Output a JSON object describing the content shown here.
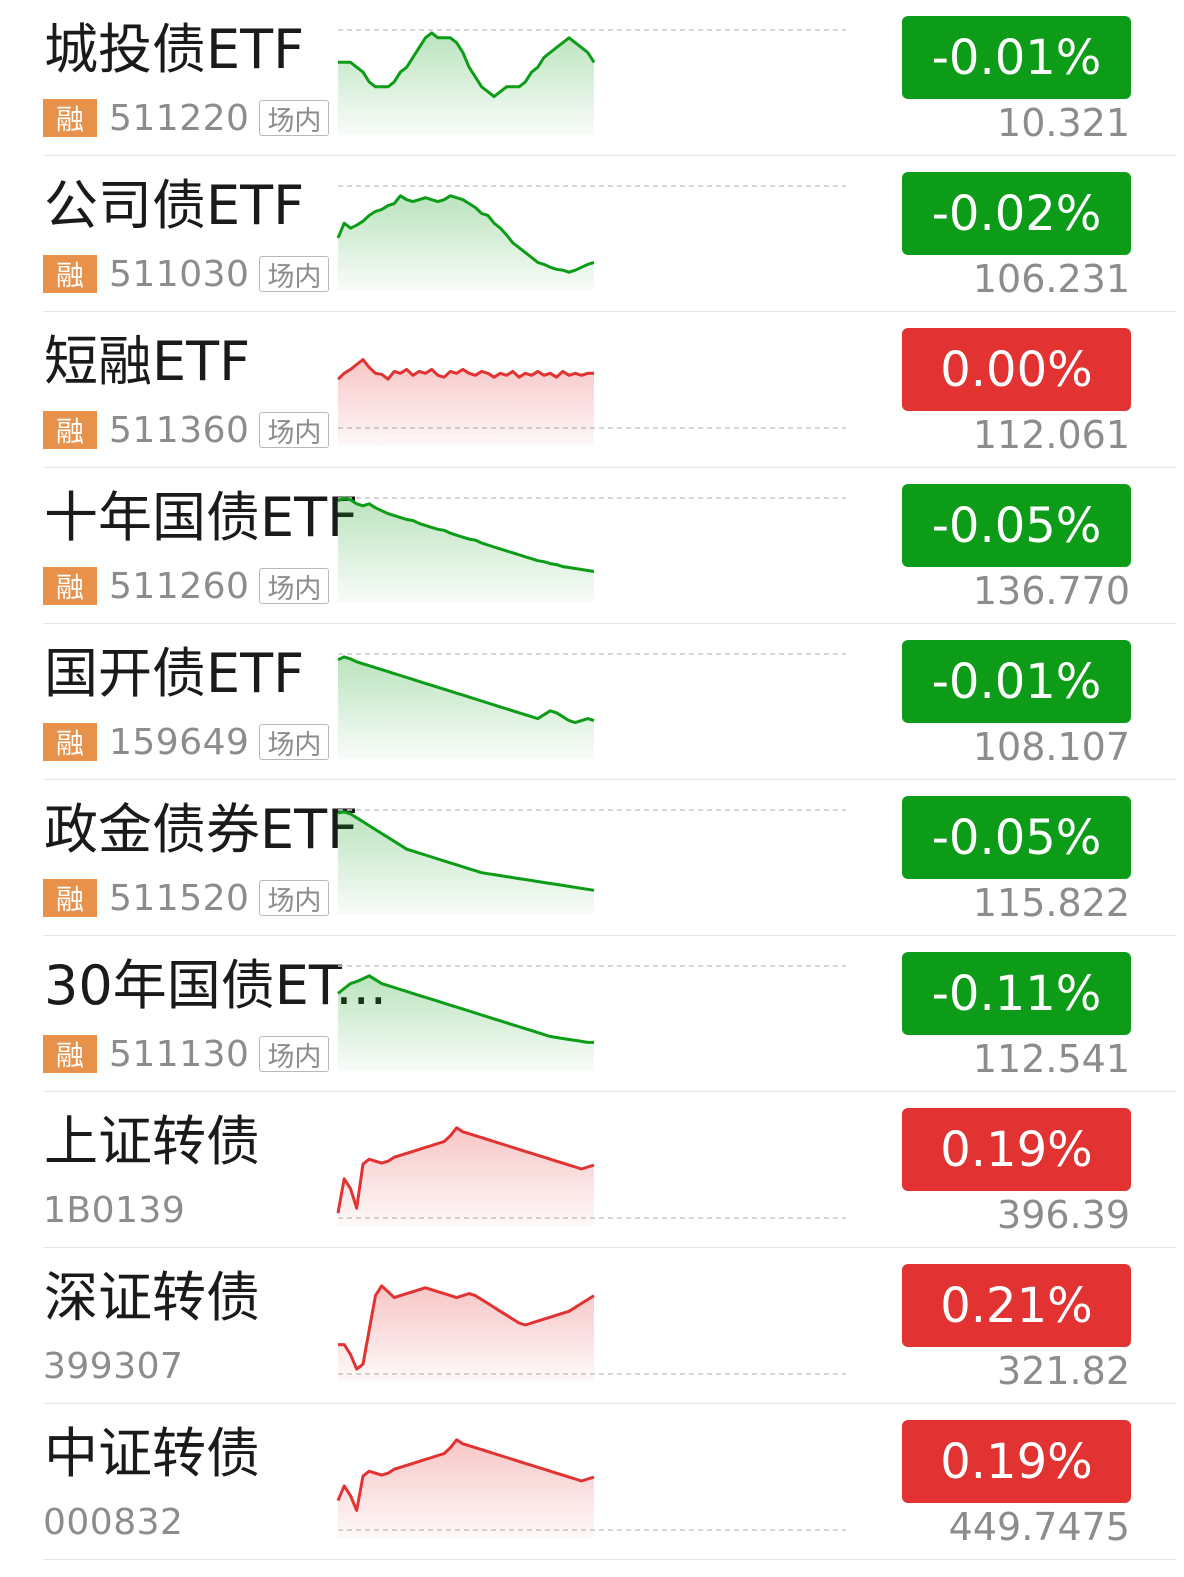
{
  "colors": {
    "up": "#e23232",
    "down": "#0c9c17",
    "margin_tag": "#e8914a"
  },
  "rows": [
    {
      "name": "城投债ETF",
      "margin_tag": "融",
      "code": "511220",
      "venue_tag": "场内",
      "change": "-0.01%",
      "price": "10.321",
      "trend": "down",
      "spark": [
        65,
        65,
        65,
        60,
        55,
        45,
        40,
        40,
        40,
        45,
        55,
        60,
        70,
        80,
        90,
        95,
        90,
        90,
        90,
        85,
        75,
        60,
        50,
        40,
        35,
        30,
        35,
        40,
        40,
        40,
        45,
        55,
        60,
        70,
        75,
        80,
        85,
        90,
        85,
        80,
        75,
        65
      ]
    },
    {
      "name": "公司债ETF",
      "margin_tag": "融",
      "code": "511030",
      "venue_tag": "场内",
      "change": "-0.02%",
      "price": "106.231",
      "trend": "down",
      "spark": [
        45,
        60,
        55,
        58,
        62,
        68,
        72,
        74,
        78,
        80,
        88,
        84,
        82,
        84,
        86,
        84,
        82,
        84,
        88,
        86,
        84,
        80,
        76,
        70,
        68,
        60,
        55,
        48,
        40,
        35,
        30,
        25,
        20,
        18,
        15,
        13,
        12,
        10,
        12,
        15,
        18,
        20
      ]
    },
    {
      "name": "短融ETF",
      "margin_tag": "融",
      "code": "511360",
      "venue_tag": "场内",
      "change": "0.00%",
      "price": "112.061",
      "trend": "up",
      "spark": [
        60,
        66,
        70,
        75,
        80,
        72,
        66,
        65,
        60,
        68,
        66,
        70,
        64,
        68,
        66,
        70,
        64,
        62,
        68,
        66,
        70,
        66,
        64,
        68,
        66,
        62,
        66,
        64,
        68,
        62,
        66,
        64,
        68,
        64,
        66,
        62,
        68,
        64,
        66,
        64,
        66,
        66
      ]
    },
    {
      "name": "十年国债ETF",
      "margin_tag": "融",
      "code": "511260",
      "venue_tag": "场内",
      "change": "-0.05%",
      "price": "136.770",
      "trend": "down",
      "spark": [
        95,
        98,
        96,
        92,
        90,
        92,
        88,
        85,
        82,
        80,
        78,
        76,
        75,
        72,
        70,
        68,
        66,
        65,
        62,
        60,
        58,
        56,
        55,
        52,
        50,
        48,
        46,
        44,
        42,
        40,
        38,
        36,
        34,
        33,
        31,
        30,
        28,
        27,
        26,
        25,
        24,
        23
      ]
    },
    {
      "name": "国开债ETF",
      "margin_tag": "融",
      "code": "159649",
      "venue_tag": "场内",
      "change": "-0.01%",
      "price": "108.107",
      "trend": "down",
      "spark": [
        92,
        95,
        93,
        90,
        88,
        86,
        84,
        82,
        80,
        78,
        76,
        74,
        72,
        70,
        68,
        66,
        64,
        62,
        60,
        58,
        56,
        54,
        52,
        50,
        48,
        46,
        44,
        42,
        40,
        38,
        36,
        34,
        32,
        36,
        40,
        38,
        34,
        30,
        28,
        30,
        32,
        30
      ]
    },
    {
      "name": "政金债券ETF",
      "margin_tag": "融",
      "code": "511520",
      "venue_tag": "场内",
      "change": "-0.05%",
      "price": "115.822",
      "trend": "down",
      "spark": [
        95,
        96,
        94,
        90,
        86,
        82,
        78,
        74,
        70,
        66,
        62,
        58,
        56,
        54,
        52,
        50,
        48,
        46,
        44,
        42,
        40,
        38,
        36,
        34,
        33,
        32,
        31,
        30,
        29,
        28,
        27,
        26,
        25,
        24,
        23,
        22,
        21,
        20,
        19,
        18,
        17,
        16
      ]
    },
    {
      "name": "30年国债ET...",
      "margin_tag": "融",
      "code": "511130",
      "venue_tag": "场内",
      "change": "-0.11%",
      "price": "112.541",
      "trend": "down",
      "spark": [
        70,
        75,
        80,
        82,
        85,
        88,
        84,
        80,
        78,
        76,
        74,
        72,
        70,
        68,
        66,
        64,
        62,
        60,
        58,
        56,
        54,
        52,
        50,
        48,
        46,
        44,
        42,
        40,
        38,
        36,
        34,
        32,
        30,
        28,
        26,
        25,
        24,
        23,
        22,
        21,
        20,
        20
      ]
    },
    {
      "name": "上证转债",
      "margin_tag": "",
      "code": "1B0139",
      "venue_tag": "",
      "change": "0.19%",
      "price": "396.39",
      "trend": "up",
      "spark": [
        5,
        40,
        30,
        10,
        55,
        60,
        58,
        56,
        58,
        62,
        64,
        66,
        68,
        70,
        72,
        74,
        76,
        78,
        84,
        92,
        88,
        86,
        84,
        82,
        80,
        78,
        76,
        74,
        72,
        70,
        68,
        66,
        64,
        62,
        60,
        58,
        56,
        54,
        52,
        50,
        52,
        54
      ]
    },
    {
      "name": "深证转债",
      "margin_tag": "",
      "code": "399307",
      "venue_tag": "",
      "change": "0.21%",
      "price": "321.82",
      "trend": "up",
      "spark": [
        30,
        30,
        20,
        5,
        10,
        45,
        80,
        90,
        84,
        78,
        80,
        82,
        84,
        86,
        88,
        86,
        84,
        82,
        80,
        78,
        80,
        82,
        80,
        76,
        72,
        68,
        64,
        60,
        56,
        52,
        50,
        52,
        54,
        56,
        58,
        60,
        62,
        64,
        68,
        72,
        76,
        80
      ]
    },
    {
      "name": "中证转债",
      "margin_tag": "",
      "code": "000832",
      "venue_tag": "",
      "change": "0.19%",
      "price": "449.7475",
      "trend": "up",
      "spark": [
        30,
        45,
        35,
        20,
        55,
        60,
        58,
        56,
        58,
        62,
        64,
        66,
        68,
        70,
        72,
        74,
        76,
        78,
        84,
        92,
        88,
        86,
        84,
        82,
        80,
        78,
        76,
        74,
        72,
        70,
        68,
        66,
        64,
        62,
        60,
        58,
        56,
        54,
        52,
        50,
        52,
        54
      ]
    }
  ]
}
